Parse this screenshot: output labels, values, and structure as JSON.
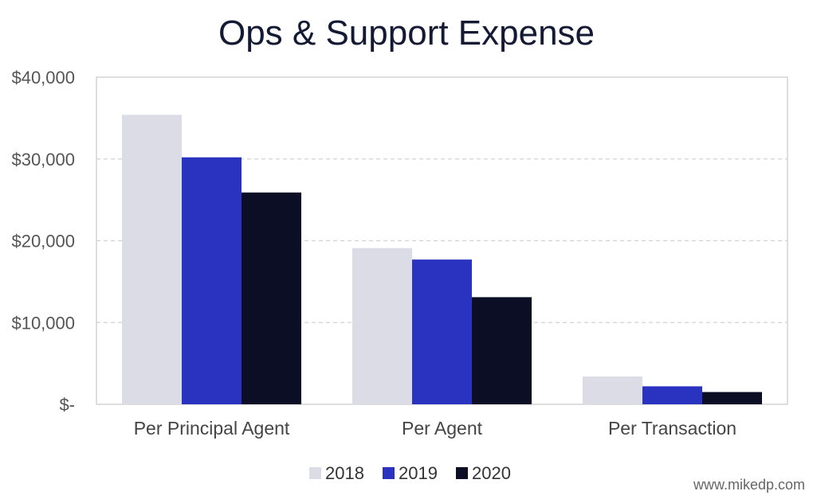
{
  "chart_data": {
    "type": "bar",
    "title": "Ops & Support Expense",
    "categories": [
      "Per Principal Agent",
      "Per Agent",
      "Per Transaction"
    ],
    "series": [
      {
        "name": "2018",
        "color": "#dcdce6",
        "values": [
          35400,
          19100,
          3400
        ]
      },
      {
        "name": "2019",
        "color": "#2a32c0",
        "values": [
          30200,
          17700,
          2200
        ]
      },
      {
        "name": "2020",
        "color": "#0b0e24",
        "values": [
          25900,
          13100,
          1500
        ]
      }
    ],
    "ylim": [
      0,
      40000
    ],
    "y_ticks": [
      {
        "value": 0,
        "label": "$-"
      },
      {
        "value": 10000,
        "label": "$10,000"
      },
      {
        "value": 20000,
        "label": "$20,000"
      },
      {
        "value": 30000,
        "label": "$30,000"
      },
      {
        "value": 40000,
        "label": "$40,000"
      }
    ],
    "grid": true,
    "legend": "bottom-center",
    "xlabel": "",
    "ylabel": ""
  },
  "credit": "www.mikedp.com"
}
